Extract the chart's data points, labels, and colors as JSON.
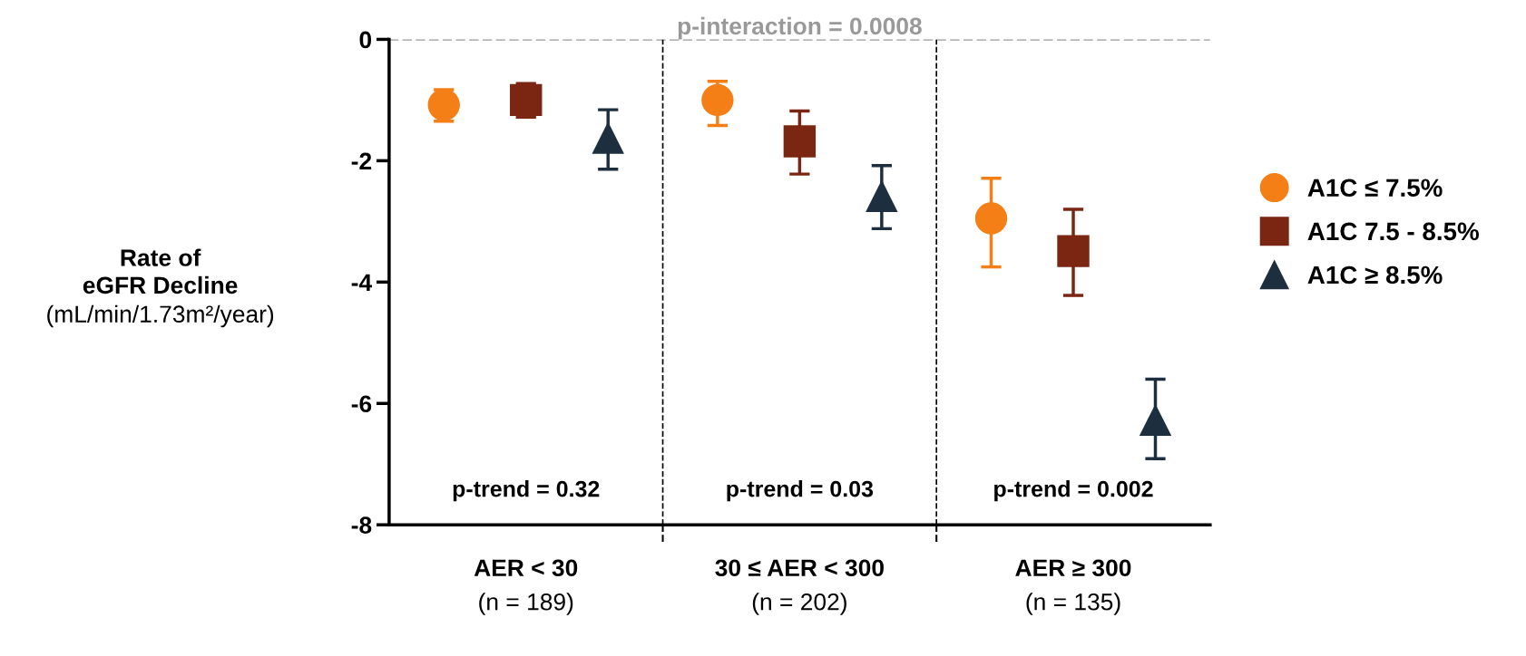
{
  "chart_data": {
    "type": "scatter",
    "ylabel": "Rate of\neGFR Decline\n(mL/min/1.73m²/year)",
    "categories": [
      "AER < 30\n(n = 189)",
      "30 ≤ AER < 300\n(n = 202)",
      "AER ≥ 300\n(n = 135)"
    ],
    "series": [
      {
        "name": "A1C ≤ 7.5%",
        "color": "#f57f17",
        "marker": "circle",
        "values": [
          -1.08,
          -1.0,
          -2.95
        ],
        "errors": [
          [
            -1.35,
            -0.83
          ],
          [
            -1.42,
            -0.69
          ],
          [
            -3.75,
            -2.29
          ]
        ]
      },
      {
        "name": "A1C 7.5 - 8.5%",
        "color": "#7a2612",
        "marker": "square",
        "values": [
          -1.0,
          -1.68,
          -3.49
        ],
        "errors": [
          [
            -1.28,
            -0.73
          ],
          [
            -2.22,
            -1.18
          ],
          [
            -4.22,
            -2.8
          ]
        ]
      },
      {
        "name": "A1C ≥ 8.5%",
        "color": "#1d2f3f",
        "marker": "triangle",
        "values": [
          -1.62,
          -2.58,
          -6.27
        ],
        "errors": [
          [
            -2.14,
            -1.16
          ],
          [
            -3.12,
            -2.08
          ],
          [
            -6.91,
            -5.6
          ]
        ]
      }
    ],
    "ylim": [
      -8,
      0
    ],
    "yticks": [
      -8,
      -6,
      -4,
      -2,
      0
    ],
    "ref_lines": [
      {
        "axis": "y",
        "value": 0,
        "color": "#999999",
        "line_style": "dashed"
      }
    ],
    "annotations": [
      "p-interaction = 0.0008",
      "p-trend = 0.32",
      "p-trend = 0.03",
      "p-trend = 0.002"
    ],
    "legend": "right",
    "grid": false
  }
}
